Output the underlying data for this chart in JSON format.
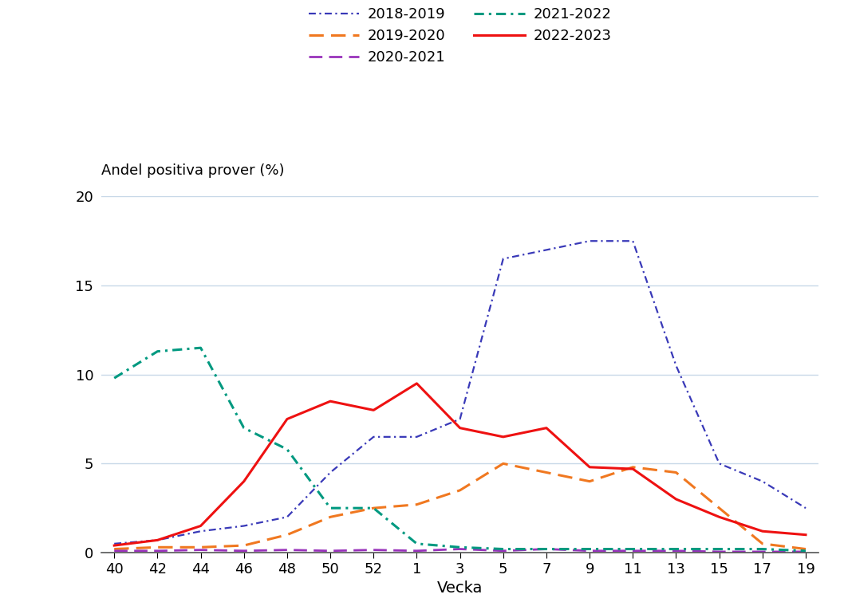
{
  "x_labels": [
    "40",
    "42",
    "44",
    "46",
    "48",
    "50",
    "52",
    "1",
    "3",
    "5",
    "7",
    "9",
    "11",
    "13",
    "15",
    "17",
    "19"
  ],
  "x_positions": [
    0,
    1,
    2,
    3,
    4,
    5,
    6,
    7,
    8,
    9,
    10,
    11,
    12,
    13,
    14,
    15,
    16
  ],
  "series_order": [
    "2018-2019",
    "2019-2020",
    "2020-2021",
    "2021-2022",
    "2022-2023"
  ],
  "series": {
    "2018-2019": {
      "color": "#3939b8",
      "linestyle": "dashdot",
      "linewidth": 1.6,
      "values": [
        0.5,
        0.7,
        1.2,
        1.5,
        2.0,
        4.5,
        6.5,
        6.5,
        7.5,
        16.5,
        17.0,
        17.5,
        17.5,
        10.5,
        5.0,
        4.0,
        2.5
      ]
    },
    "2019-2020": {
      "color": "#f07820",
      "linestyle": "dashed",
      "linewidth": 2.2,
      "values": [
        0.2,
        0.3,
        0.3,
        0.4,
        1.0,
        2.0,
        2.5,
        2.7,
        3.5,
        5.0,
        4.5,
        4.0,
        4.8,
        4.5,
        2.5,
        0.5,
        0.2
      ]
    },
    "2020-2021": {
      "color": "#9933bb",
      "linestyle": "dashed",
      "linewidth": 2.0,
      "values": [
        0.1,
        0.1,
        0.15,
        0.1,
        0.15,
        0.1,
        0.15,
        0.1,
        0.2,
        0.1,
        0.2,
        0.1,
        0.1,
        0.1,
        0.05,
        0.05,
        0.05
      ]
    },
    "2021-2022": {
      "color": "#009980",
      "linestyle": "dashdot",
      "linewidth": 2.2,
      "values": [
        9.8,
        11.3,
        11.5,
        7.0,
        5.8,
        2.5,
        2.5,
        0.5,
        0.3,
        0.2,
        0.2,
        0.2,
        0.2,
        0.2,
        0.2,
        0.2,
        0.1
      ]
    },
    "2022-2023": {
      "color": "#ee1111",
      "linestyle": "solid",
      "linewidth": 2.2,
      "values": [
        0.4,
        0.7,
        1.5,
        4.0,
        7.5,
        8.5,
        8.0,
        9.5,
        7.0,
        6.5,
        7.0,
        4.8,
        4.7,
        3.0,
        2.0,
        1.2,
        1.0
      ]
    }
  },
  "ylabel": "Andel positiva prover (%)",
  "xlabel": "Vecka",
  "ylim": [
    0,
    20
  ],
  "yticks": [
    0,
    5,
    10,
    15,
    20
  ],
  "background_color": "#ffffff",
  "grid_color": "#c8d8e8",
  "tick_fontsize": 13,
  "label_fontsize": 14,
  "legend_fontsize": 13
}
